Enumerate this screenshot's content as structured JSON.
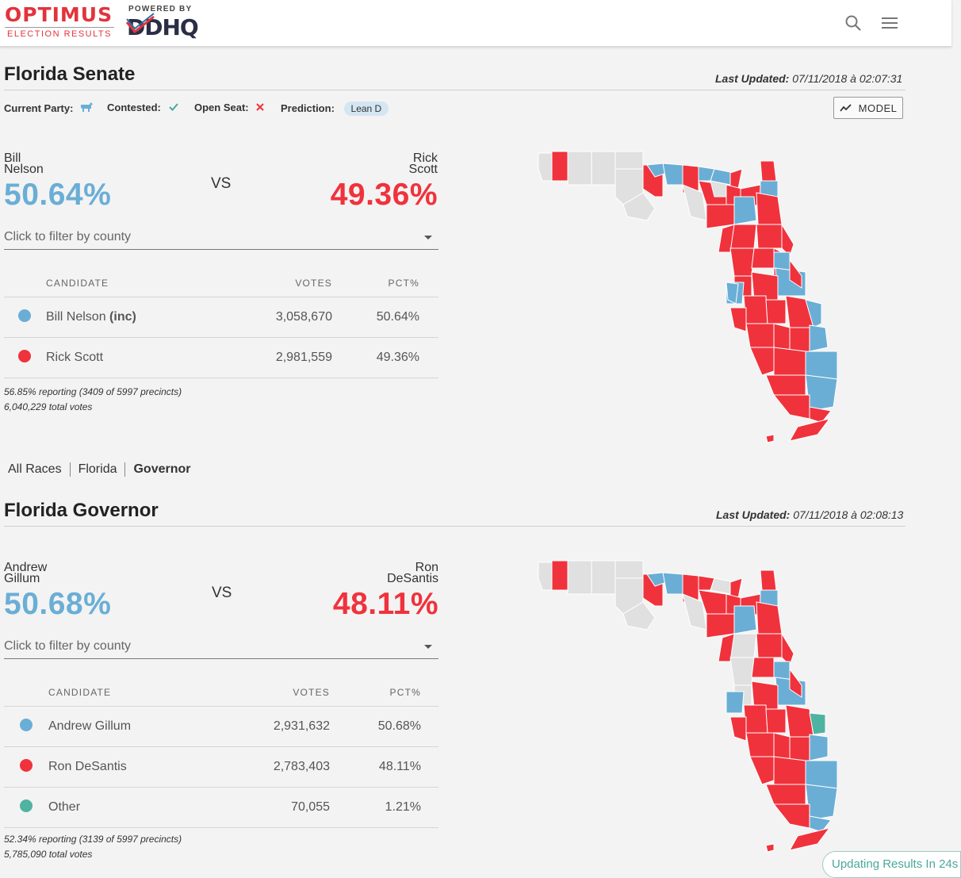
{
  "header": {
    "brand": "OPTIMUS",
    "brand_sub": "ELECTION RESULTS",
    "powered_by": "POWERED BY",
    "partner": "DDHQ",
    "icons": [
      "search-icon",
      "menu-icon"
    ]
  },
  "colors": {
    "dem": "#6aaed6",
    "rep": "#f0323c",
    "other": "#4fb3a1",
    "no_data": "#e0e0e0"
  },
  "senate": {
    "title": "Florida Senate",
    "last_updated_label": "Last Updated:",
    "last_updated": "07/11/2018 à 02:07:31",
    "current_party_label": "Current Party:",
    "contested_label": "Contested:",
    "open_seat_label": "Open Seat:",
    "prediction_label": "Prediction:",
    "prediction": "Lean D",
    "model_button": "MODEL",
    "left_first": "Bill",
    "left_last": "Nelson",
    "left_pct": "50.64%",
    "vs": "VS",
    "right_first": "Rick",
    "right_last": "Scott",
    "right_pct": "49.36%",
    "filter_placeholder": "Click to filter by county",
    "columns": {
      "candidate": "CANDIDATE",
      "votes": "VOTES",
      "pct": "PCT%"
    },
    "rows": [
      {
        "name": "Bill Nelson",
        "suffix": "(inc)",
        "votes": "3,058,670",
        "pct": "50.64%",
        "party": "dem"
      },
      {
        "name": "Rick Scott",
        "suffix": "",
        "votes": "2,981,559",
        "pct": "49.36%",
        "party": "rep"
      }
    ],
    "reporting": "56.85% reporting (3409 of 5997 precincts)",
    "total_votes": "6,040,229 total votes"
  },
  "breadcrumb": [
    "All Races",
    "Florida",
    "Governor"
  ],
  "governor": {
    "title": "Florida Governor",
    "last_updated_label": "Last Updated:",
    "last_updated": "07/11/2018 à 02:08:13",
    "left_first": "Andrew",
    "left_last": "Gillum",
    "left_pct": "50.68%",
    "vs": "VS",
    "right_first": "Ron",
    "right_last": "DeSantis",
    "right_pct": "48.11%",
    "filter_placeholder": "Click to filter by county",
    "columns": {
      "candidate": "CANDIDATE",
      "votes": "VOTES",
      "pct": "PCT%"
    },
    "rows": [
      {
        "name": "Andrew Gillum",
        "votes": "2,931,632",
        "pct": "50.68%",
        "party": "dem"
      },
      {
        "name": "Ron DeSantis",
        "votes": "2,783,403",
        "pct": "48.11%",
        "party": "rep"
      },
      {
        "name": "Other",
        "votes": "70,055",
        "pct": "1.21%",
        "party": "other"
      }
    ],
    "reporting": "52.34% reporting (3139 of 5997 precincts)",
    "total_votes": "5,785,090 total votes"
  },
  "status": {
    "updating": "Updating Results In 24s"
  }
}
